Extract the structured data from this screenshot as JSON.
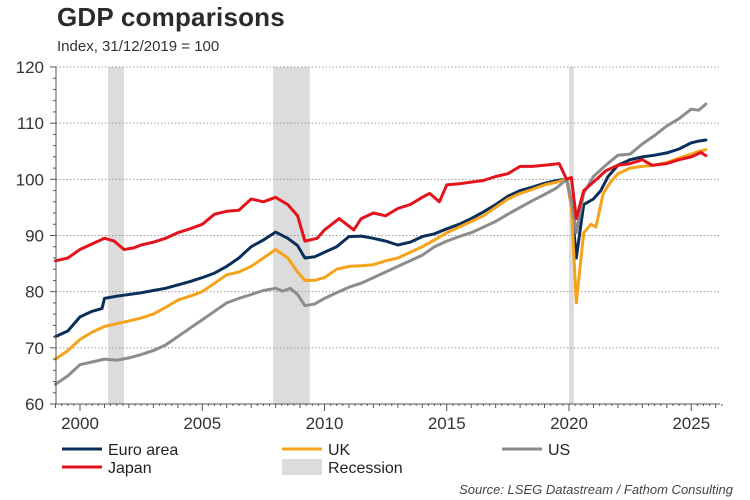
{
  "chart_data": {
    "type": "line",
    "title": "GDP comparisons",
    "subtitle": "Index, 31/12/2019 = 100",
    "xlabel": "",
    "ylabel": "",
    "xlim": [
      1999.0,
      2026.3
    ],
    "ylim": [
      60,
      120
    ],
    "yticks": [
      60,
      70,
      80,
      90,
      100,
      110,
      120
    ],
    "xticks": [
      2000,
      2005,
      2010,
      2015,
      2020,
      2025
    ],
    "grid": "horizontal-dotted",
    "legend_position": "bottom",
    "source": "Source: LSEG Datastream / Fathom Consulting",
    "recessions": [
      {
        "start": 2001.15,
        "end": 2001.8
      },
      {
        "start": 2007.9,
        "end": 2009.4
      },
      {
        "start": 2020.0,
        "end": 2020.2
      }
    ],
    "recession_label": "Recession",
    "recession_color": "#dcdcdc",
    "series": [
      {
        "name": "Euro area",
        "color": "#0b2f5b",
        "x": [
          1999.0,
          1999.5,
          2000.0,
          2000.5,
          2000.9,
          2001.0,
          2001.5,
          2002.0,
          2002.5,
          2003.0,
          2003.5,
          2004.0,
          2004.5,
          2005.0,
          2005.5,
          2006.0,
          2006.5,
          2007.0,
          2007.5,
          2008.0,
          2008.5,
          2008.9,
          2009.2,
          2009.6,
          2010.0,
          2010.5,
          2011.0,
          2011.5,
          2012.0,
          2012.5,
          2013.0,
          2013.5,
          2014.0,
          2014.5,
          2015.0,
          2015.5,
          2016.0,
          2016.5,
          2017.0,
          2017.5,
          2018.0,
          2018.5,
          2019.0,
          2019.5,
          2019.9,
          2020.1,
          2020.3,
          2020.6,
          2021.0,
          2021.3,
          2021.6,
          2022.0,
          2022.5,
          2023.0,
          2023.5,
          2024.0,
          2024.5,
          2025.0,
          2025.3,
          2025.6
        ],
        "values": [
          72.0,
          73.0,
          75.5,
          76.5,
          77.0,
          78.8,
          79.2,
          79.5,
          79.8,
          80.2,
          80.6,
          81.2,
          81.8,
          82.5,
          83.3,
          84.5,
          86.0,
          88.0,
          89.2,
          90.6,
          89.5,
          88.2,
          86.0,
          86.2,
          87.0,
          88.0,
          89.8,
          89.9,
          89.5,
          89.0,
          88.3,
          88.8,
          89.8,
          90.3,
          91.2,
          92.0,
          93.0,
          94.2,
          95.5,
          97.0,
          98.0,
          98.6,
          99.3,
          99.8,
          100.0,
          96.0,
          86.0,
          95.5,
          96.5,
          98.0,
          100.5,
          102.5,
          103.5,
          104.0,
          104.3,
          104.7,
          105.4,
          106.5,
          106.8,
          107.0
        ]
      },
      {
        "name": "UK",
        "color": "#f5a31a",
        "x": [
          1999.0,
          1999.5,
          2000.0,
          2000.5,
          2001.0,
          2001.5,
          2002.0,
          2002.5,
          2003.0,
          2003.5,
          2004.0,
          2004.5,
          2005.0,
          2005.5,
          2006.0,
          2006.5,
          2007.0,
          2007.5,
          2008.0,
          2008.5,
          2008.9,
          2009.2,
          2009.6,
          2010.0,
          2010.5,
          2011.0,
          2011.5,
          2012.0,
          2012.5,
          2013.0,
          2013.5,
          2014.0,
          2014.5,
          2015.0,
          2015.5,
          2016.0,
          2016.5,
          2017.0,
          2017.5,
          2018.0,
          2018.5,
          2019.0,
          2019.5,
          2019.9,
          2020.1,
          2020.3,
          2020.6,
          2020.9,
          2021.1,
          2021.4,
          2021.7,
          2022.0,
          2022.5,
          2023.0,
          2023.5,
          2024.0,
          2024.5,
          2025.0,
          2025.3,
          2025.6
        ],
        "values": [
          68.0,
          69.5,
          71.5,
          72.8,
          73.8,
          74.3,
          74.8,
          75.3,
          76.0,
          77.2,
          78.5,
          79.2,
          80.0,
          81.5,
          83.0,
          83.5,
          84.5,
          86.0,
          87.5,
          86.0,
          83.5,
          82.0,
          82.0,
          82.5,
          84.0,
          84.5,
          84.6,
          84.8,
          85.5,
          86.0,
          87.0,
          88.0,
          89.2,
          90.5,
          91.5,
          92.5,
          93.5,
          95.0,
          96.5,
          97.5,
          98.2,
          99.0,
          99.5,
          100.0,
          95.0,
          78.0,
          90.5,
          92.0,
          91.5,
          97.5,
          99.5,
          101.0,
          102.0,
          102.3,
          102.5,
          103.0,
          103.8,
          104.5,
          105.0,
          105.3
        ]
      },
      {
        "name": "US",
        "color": "#8c8c8c",
        "x": [
          1999.0,
          1999.5,
          2000.0,
          2000.5,
          2001.0,
          2001.5,
          2002.0,
          2002.5,
          2003.0,
          2003.5,
          2004.0,
          2004.5,
          2005.0,
          2005.5,
          2006.0,
          2006.5,
          2007.0,
          2007.5,
          2008.0,
          2008.3,
          2008.6,
          2008.9,
          2009.2,
          2009.6,
          2010.0,
          2010.5,
          2011.0,
          2011.5,
          2012.0,
          2012.5,
          2013.0,
          2013.5,
          2014.0,
          2014.5,
          2015.0,
          2015.5,
          2016.0,
          2016.5,
          2017.0,
          2017.5,
          2018.0,
          2018.5,
          2019.0,
          2019.5,
          2019.9,
          2020.1,
          2020.3,
          2020.6,
          2021.0,
          2021.5,
          2022.0,
          2022.5,
          2023.0,
          2023.5,
          2024.0,
          2024.5,
          2025.0,
          2025.3,
          2025.6
        ],
        "values": [
          63.5,
          65.0,
          67.0,
          67.5,
          68.0,
          67.8,
          68.2,
          68.8,
          69.5,
          70.5,
          72.0,
          73.5,
          75.0,
          76.5,
          78.0,
          78.8,
          79.5,
          80.2,
          80.6,
          80.1,
          80.6,
          79.5,
          77.5,
          77.8,
          78.8,
          79.8,
          80.8,
          81.5,
          82.5,
          83.5,
          84.5,
          85.5,
          86.5,
          88.0,
          89.0,
          89.8,
          90.5,
          91.5,
          92.5,
          93.8,
          95.0,
          96.2,
          97.3,
          98.5,
          100.0,
          96.0,
          90.5,
          97.5,
          100.5,
          102.5,
          104.3,
          104.5,
          106.3,
          107.8,
          109.5,
          110.8,
          112.5,
          112.3,
          113.4
        ]
      },
      {
        "name": "Japan",
        "color": "#e3131b",
        "x": [
          1999.0,
          1999.5,
          2000.0,
          2000.5,
          2001.0,
          2001.4,
          2001.8,
          2002.2,
          2002.5,
          2003.0,
          2003.5,
          2004.0,
          2004.5,
          2005.0,
          2005.5,
          2006.0,
          2006.5,
          2007.0,
          2007.5,
          2008.0,
          2008.5,
          2008.9,
          2009.2,
          2009.7,
          2010.0,
          2010.6,
          2011.2,
          2011.5,
          2012.0,
          2012.5,
          2013.0,
          2013.5,
          2014.0,
          2014.3,
          2014.7,
          2015.0,
          2015.5,
          2016.0,
          2016.5,
          2017.0,
          2017.5,
          2018.0,
          2018.5,
          2019.0,
          2019.6,
          2019.9,
          2020.1,
          2020.3,
          2020.6,
          2021.0,
          2021.5,
          2022.0,
          2022.5,
          2023.0,
          2023.4,
          2024.0,
          2024.5,
          2025.0,
          2025.4,
          2025.6
        ],
        "values": [
          85.5,
          86.0,
          87.5,
          88.5,
          89.5,
          89.0,
          87.5,
          87.8,
          88.3,
          88.8,
          89.5,
          90.5,
          91.2,
          92.0,
          93.8,
          94.3,
          94.5,
          96.5,
          96.0,
          96.8,
          95.5,
          93.5,
          89.0,
          89.5,
          91.0,
          93.0,
          91.0,
          93.0,
          94.0,
          93.5,
          94.8,
          95.5,
          96.8,
          97.5,
          96.0,
          99.0,
          99.2,
          99.5,
          99.8,
          100.5,
          101.0,
          102.3,
          102.3,
          102.5,
          102.8,
          100.0,
          100.3,
          93.0,
          98.0,
          99.5,
          101.5,
          102.5,
          102.8,
          103.5,
          102.5,
          102.8,
          103.5,
          104.0,
          104.8,
          104.2
        ]
      }
    ],
    "legend": [
      {
        "label": "Euro area",
        "kind": "line",
        "color": "#0b2f5b"
      },
      {
        "label": "UK",
        "kind": "line",
        "color": "#f5a31a"
      },
      {
        "label": "US",
        "kind": "line",
        "color": "#8c8c8c"
      },
      {
        "label": "Japan",
        "kind": "line",
        "color": "#e3131b"
      },
      {
        "label": "Recession",
        "kind": "box",
        "color": "#dcdcdc"
      }
    ]
  }
}
